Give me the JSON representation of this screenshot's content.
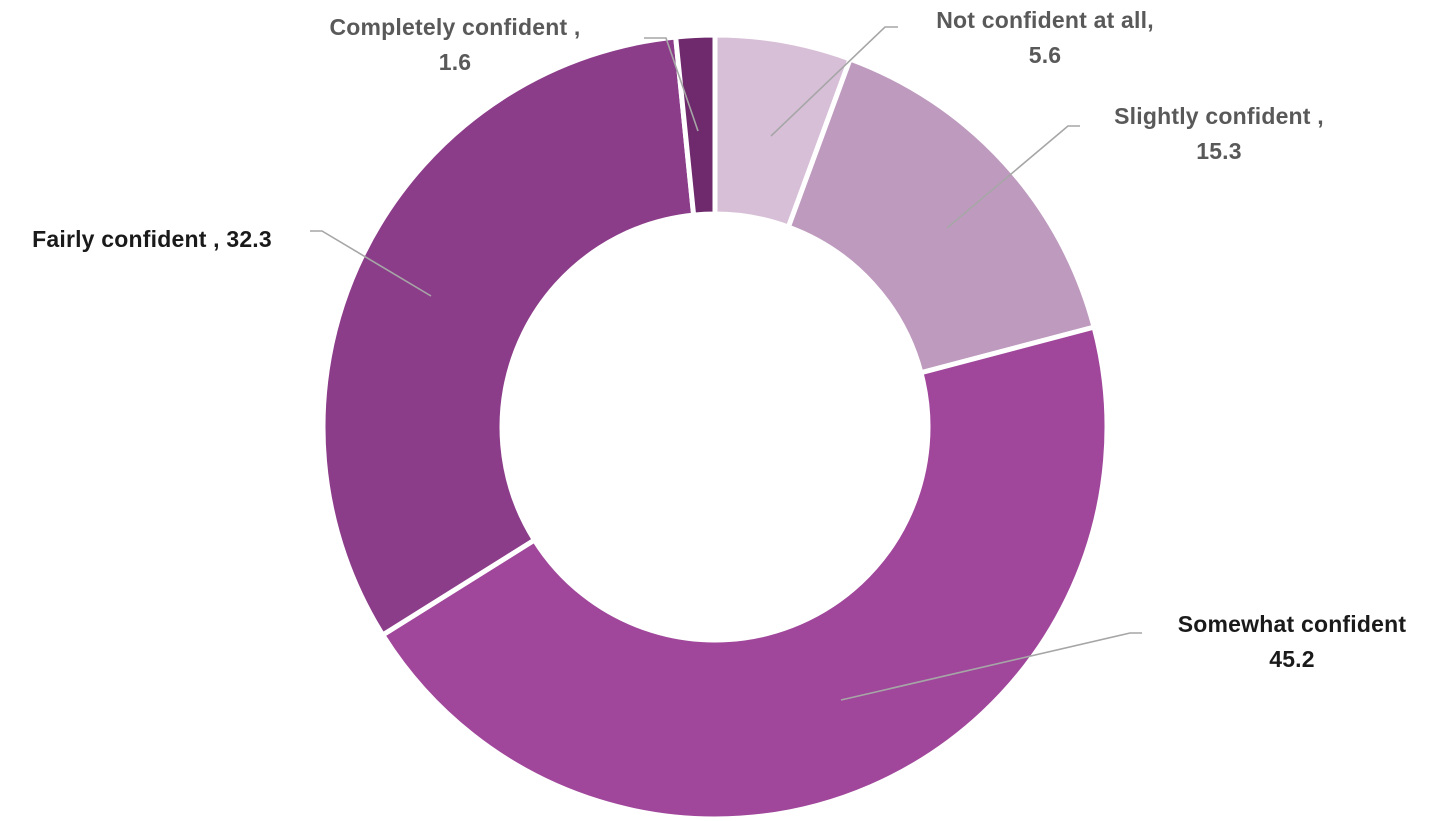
{
  "chart_data": {
    "type": "pie",
    "variant": "donut",
    "legend": "none",
    "categories": [
      "Not confident at all",
      "Slightly confident",
      "Somewhat confident",
      "Fairly confident",
      "Completely confident"
    ],
    "values": [
      5.6,
      15.3,
      45.2,
      32.3,
      1.6
    ],
    "colors": [
      "#d8bfd8",
      "#be9bbe",
      "#a0479b",
      "#8c3d8a",
      "#6e2a6c"
    ],
    "data_labels": [
      {
        "lines": [
          "Not confident at all,",
          "5.6"
        ],
        "color": "#595959"
      },
      {
        "lines": [
          "Slightly confident ,",
          "15.3"
        ],
        "color": "#595959"
      },
      {
        "lines": [
          "Somewhat confident",
          "45.2"
        ],
        "color": "#1a1a1a"
      },
      {
        "lines": [
          "Fairly confident , 32.3"
        ],
        "color": "#1a1a1a"
      },
      {
        "lines": [
          "Completely confident ,",
          "1.6"
        ],
        "color": "#595959"
      }
    ],
    "leader_line_color": "#a6a6a6",
    "background": "#ffffff"
  }
}
